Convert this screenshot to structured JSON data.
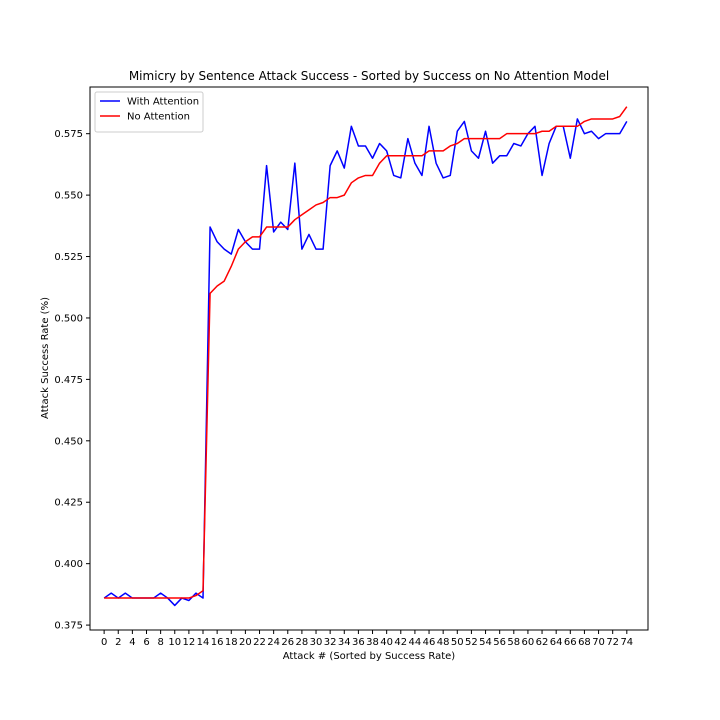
{
  "chart_data": {
    "type": "line",
    "title": "Mimicry by Sentence Attack Success - Sorted by Success on No Attention Model",
    "xlabel": "Attack # (Sorted by Success Rate)",
    "ylabel": "Attack Success Rate (%)",
    "xlim": [
      -2,
      77
    ],
    "ylim": [
      0.373,
      0.594
    ],
    "x_ticks": [
      0,
      2,
      4,
      6,
      8,
      10,
      12,
      14,
      16,
      18,
      20,
      22,
      24,
      26,
      28,
      30,
      32,
      34,
      36,
      38,
      40,
      42,
      44,
      46,
      48,
      50,
      52,
      54,
      56,
      58,
      60,
      62,
      64,
      66,
      68,
      70,
      72,
      74
    ],
    "y_ticks": [
      0.375,
      0.4,
      0.425,
      0.45,
      0.475,
      0.5,
      0.525,
      0.55,
      0.575
    ],
    "y_tick_labels": [
      "0.375",
      "0.400",
      "0.425",
      "0.450",
      "0.475",
      "0.500",
      "0.525",
      "0.550",
      "0.575"
    ],
    "grid": false,
    "legend_position": "upper left",
    "series": [
      {
        "name": "With Attention",
        "color": "#0000ff",
        "values": [
          0.386,
          0.388,
          0.386,
          0.388,
          0.386,
          0.386,
          0.386,
          0.386,
          0.388,
          0.386,
          0.383,
          0.386,
          0.385,
          0.388,
          0.386,
          0.537,
          0.531,
          0.528,
          0.526,
          0.536,
          0.531,
          0.528,
          0.528,
          0.562,
          0.535,
          0.539,
          0.536,
          0.563,
          0.528,
          0.534,
          0.528,
          0.528,
          0.562,
          0.568,
          0.561,
          0.578,
          0.57,
          0.57,
          0.565,
          0.571,
          0.568,
          0.558,
          0.557,
          0.573,
          0.563,
          0.558,
          0.578,
          0.563,
          0.557,
          0.558,
          0.576,
          0.58,
          0.568,
          0.565,
          0.576,
          0.563,
          0.566,
          0.566,
          0.571,
          0.57,
          0.575,
          0.578,
          0.558,
          0.571,
          0.578,
          0.578,
          0.565,
          0.581,
          0.575,
          0.576,
          0.573,
          0.575,
          0.575,
          0.575,
          0.58
        ]
      },
      {
        "name": "No Attention",
        "color": "#ff0000",
        "values": [
          0.386,
          0.386,
          0.386,
          0.386,
          0.386,
          0.386,
          0.386,
          0.386,
          0.386,
          0.386,
          0.386,
          0.386,
          0.386,
          0.387,
          0.389,
          0.51,
          0.513,
          0.515,
          0.521,
          0.528,
          0.531,
          0.533,
          0.533,
          0.537,
          0.537,
          0.537,
          0.537,
          0.54,
          0.542,
          0.544,
          0.546,
          0.547,
          0.549,
          0.549,
          0.55,
          0.555,
          0.557,
          0.558,
          0.558,
          0.563,
          0.566,
          0.566,
          0.566,
          0.566,
          0.566,
          0.566,
          0.568,
          0.568,
          0.568,
          0.57,
          0.571,
          0.573,
          0.573,
          0.573,
          0.573,
          0.573,
          0.573,
          0.575,
          0.575,
          0.575,
          0.575,
          0.575,
          0.576,
          0.576,
          0.578,
          0.578,
          0.578,
          0.578,
          0.58,
          0.581,
          0.581,
          0.581,
          0.581,
          0.582,
          0.586
        ]
      }
    ]
  }
}
